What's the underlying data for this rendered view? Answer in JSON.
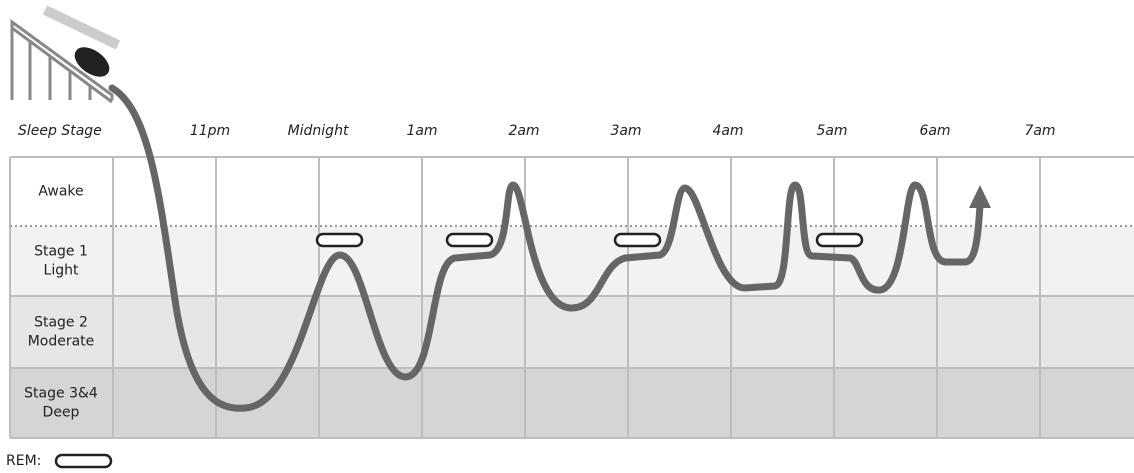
{
  "header": {
    "stage_label": "Sleep Stage",
    "times": [
      "11pm",
      "Midnight",
      "1am",
      "2am",
      "3am",
      "4am",
      "5am",
      "6am",
      "7am"
    ]
  },
  "stages": [
    [
      "Awake"
    ],
    [
      "Stage 1",
      "Light"
    ],
    [
      "Stage 2",
      "Moderate"
    ],
    [
      "Stage 3&4",
      "Deep"
    ]
  ],
  "legend": {
    "label": "REM:"
  }
}
